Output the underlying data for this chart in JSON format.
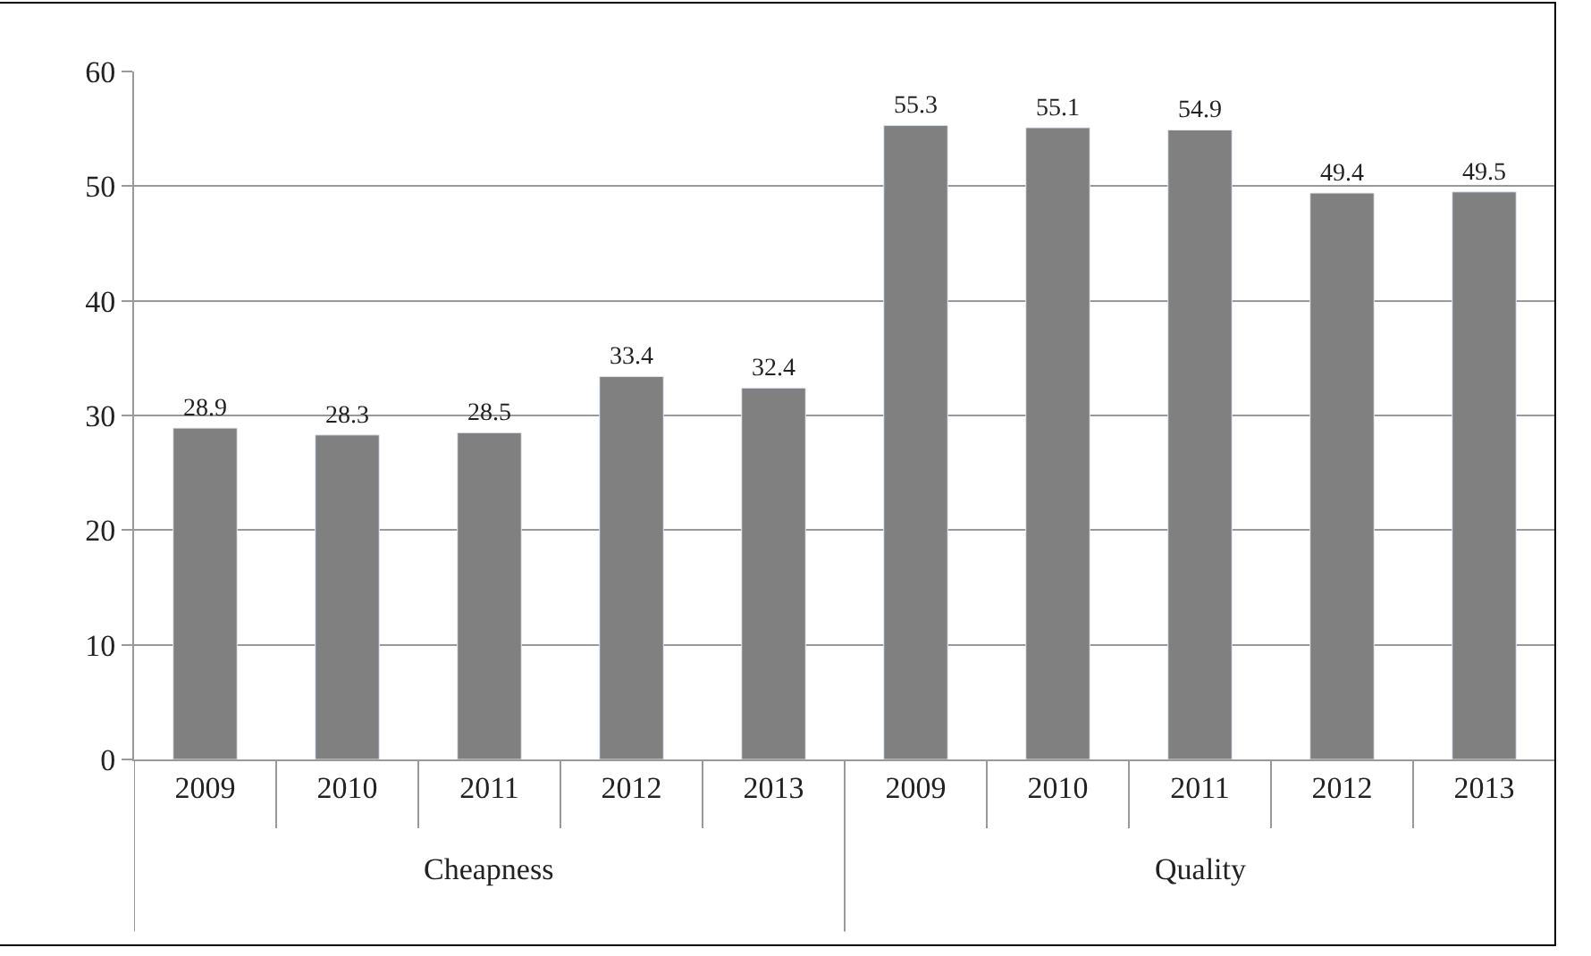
{
  "chart_data": {
    "type": "bar",
    "categories": [
      "2009",
      "2010",
      "2011",
      "2012",
      "2013",
      "2009",
      "2010",
      "2011",
      "2012",
      "2013"
    ],
    "values": [
      28.9,
      28.3,
      28.5,
      33.4,
      32.4,
      55.3,
      55.1,
      54.9,
      49.4,
      49.5
    ],
    "color": "#808080",
    "ylim": [
      0,
      60
    ],
    "yticks": [
      0,
      10,
      20,
      30,
      40,
      50,
      60
    ],
    "grid": "y",
    "data_labels": true,
    "legend": false,
    "annotations": [
      "Cheapness",
      "Quality"
    ]
  }
}
